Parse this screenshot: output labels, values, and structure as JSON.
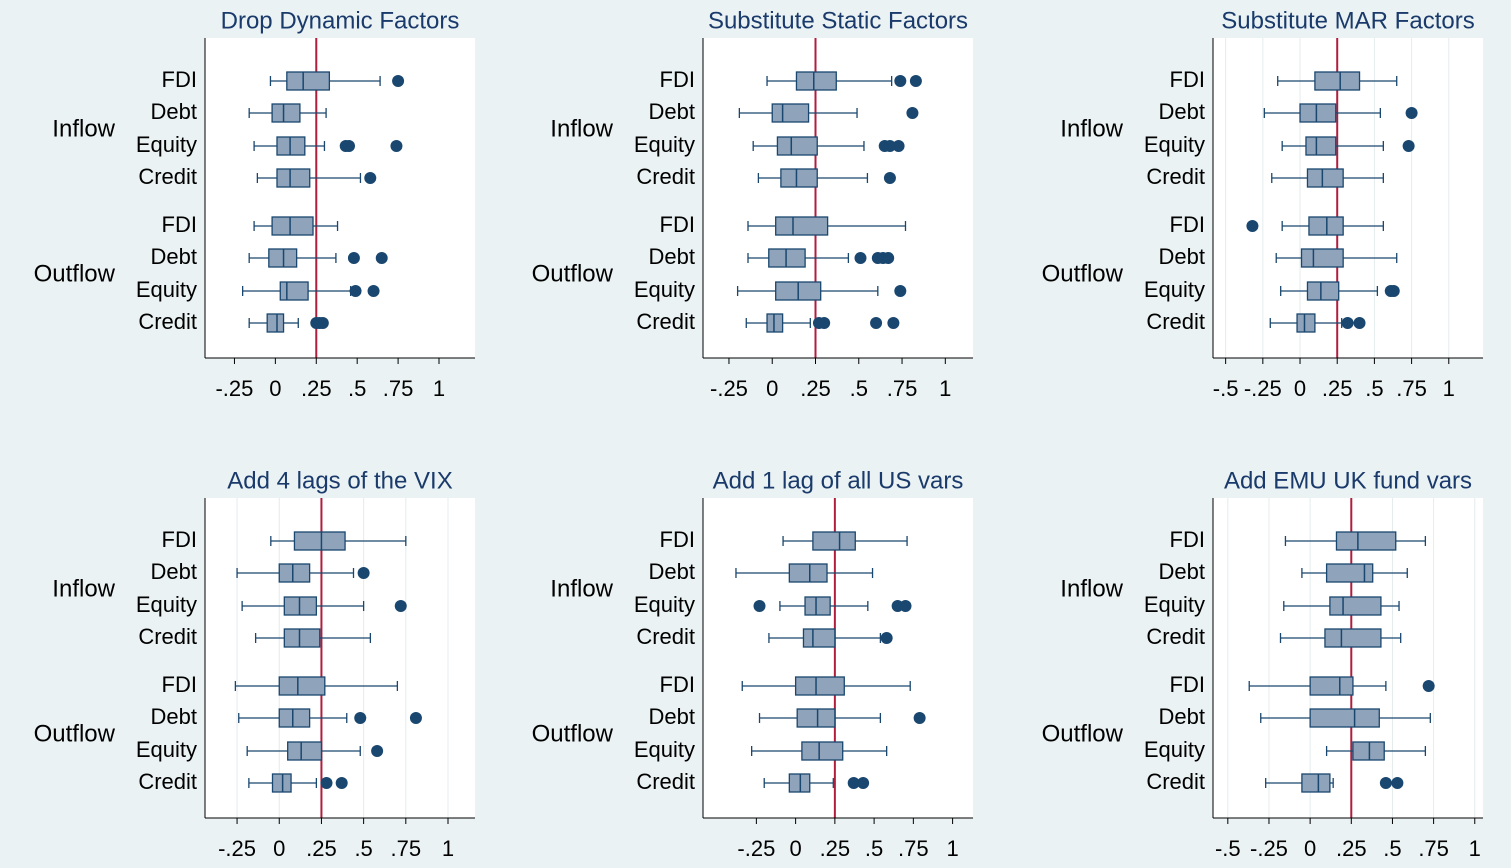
{
  "chart_data": [
    {
      "type": "box",
      "title": "Drop Dynamic Factors",
      "xlim": [
        -0.43,
        1.22
      ],
      "xticks": [
        {
          "value": -0.25,
          "label": "-.25"
        },
        0,
        {
          "value": 0.25,
          "label": ".25"
        },
        {
          "value": 0.5,
          "label": ".5"
        },
        {
          "value": 0.75,
          "label": ".75"
        },
        1
      ],
      "ref_line": 0.25,
      "grid": false,
      "color": "#8fa3ba",
      "ref_color": "#b01e3c",
      "groups": [
        {
          "name": "Inflow",
          "categories": [
            "FDI",
            "Debt",
            "Equity",
            "Credit"
          ],
          "boxes": [
            {
              "min": -0.03,
              "q1": 0.07,
              "median": 0.17,
              "q3": 0.33,
              "max": 0.64,
              "outliers": [
                0.75
              ]
            },
            {
              "min": -0.16,
              "q1": -0.02,
              "median": 0.05,
              "q3": 0.15,
              "max": 0.31,
              "outliers": []
            },
            {
              "min": -0.13,
              "q1": 0.01,
              "median": 0.09,
              "q3": 0.18,
              "max": 0.3,
              "outliers": [
                0.43,
                0.45,
                0.74
              ]
            },
            {
              "min": -0.11,
              "q1": 0.01,
              "median": 0.09,
              "q3": 0.21,
              "max": 0.52,
              "outliers": [
                0.58
              ]
            }
          ]
        },
        {
          "name": "Outflow",
          "categories": [
            "FDI",
            "Debt",
            "Equity",
            "Credit"
          ],
          "boxes": [
            {
              "min": -0.13,
              "q1": -0.02,
              "median": 0.09,
              "q3": 0.23,
              "max": 0.38,
              "outliers": []
            },
            {
              "min": -0.16,
              "q1": -0.04,
              "median": 0.05,
              "q3": 0.13,
              "max": 0.37,
              "outliers": [
                0.48,
                0.65
              ]
            },
            {
              "min": -0.2,
              "q1": 0.03,
              "median": 0.07,
              "q3": 0.2,
              "max": 0.46,
              "outliers": [
                0.49,
                0.6
              ]
            },
            {
              "min": -0.16,
              "q1": -0.05,
              "median": 0.01,
              "q3": 0.05,
              "max": 0.14,
              "outliers": [
                0.25,
                0.27,
                0.29
              ]
            }
          ]
        }
      ]
    },
    {
      "type": "box",
      "title": "Substitute Static Factors",
      "xlim": [
        -0.4,
        1.16
      ],
      "xticks": [
        {
          "value": -0.25,
          "label": "-.25"
        },
        0,
        {
          "value": 0.25,
          "label": ".25"
        },
        {
          "value": 0.5,
          "label": ".5"
        },
        {
          "value": 0.75,
          "label": ".75"
        },
        1
      ],
      "ref_line": 0.25,
      "grid": false,
      "color": "#8fa3ba",
      "ref_color": "#b01e3c",
      "groups": [
        {
          "name": "Inflow",
          "categories": [
            "FDI",
            "Debt",
            "Equity",
            "Credit"
          ],
          "boxes": [
            {
              "min": -0.03,
              "q1": 0.14,
              "median": 0.24,
              "q3": 0.37,
              "max": 0.69,
              "outliers": [
                0.74,
                0.83
              ]
            },
            {
              "min": -0.19,
              "q1": 0,
              "median": 0.06,
              "q3": 0.21,
              "max": 0.49,
              "outliers": [
                0.81
              ]
            },
            {
              "min": -0.11,
              "q1": 0.03,
              "median": 0.11,
              "q3": 0.26,
              "max": 0.53,
              "outliers": [
                0.65,
                0.68,
                0.73
              ]
            },
            {
              "min": -0.08,
              "q1": 0.05,
              "median": 0.14,
              "q3": 0.26,
              "max": 0.55,
              "outliers": [
                0.68
              ]
            }
          ]
        },
        {
          "name": "Outflow",
          "categories": [
            "FDI",
            "Debt",
            "Equity",
            "Credit"
          ],
          "boxes": [
            {
              "min": -0.14,
              "q1": 0.02,
              "median": 0.12,
              "q3": 0.32,
              "max": 0.77,
              "outliers": []
            },
            {
              "min": -0.14,
              "q1": -0.02,
              "median": 0.08,
              "q3": 0.19,
              "max": 0.44,
              "outliers": [
                0.51,
                0.61,
                0.64,
                0.67
              ]
            },
            {
              "min": -0.2,
              "q1": 0.02,
              "median": 0.15,
              "q3": 0.28,
              "max": 0.61,
              "outliers": [
                0.74
              ]
            },
            {
              "min": -0.15,
              "q1": -0.03,
              "median": 0.01,
              "q3": 0.06,
              "max": 0.22,
              "outliers": [
                0.27,
                0.3,
                0.6,
                0.7
              ]
            }
          ]
        }
      ]
    },
    {
      "type": "box",
      "title": "Substitute MAR Factors",
      "xlim": [
        -0.585,
        1.23
      ],
      "xticks": [
        {
          "value": -0.5,
          "label": "-.5"
        },
        {
          "value": -0.25,
          "label": "-.25"
        },
        0,
        {
          "value": 0.25,
          "label": ".25"
        },
        {
          "value": 0.5,
          "label": ".5"
        },
        {
          "value": 0.75,
          "label": ".75"
        },
        1
      ],
      "ref_line": 0.25,
      "grid": true,
      "color": "#8fa3ba",
      "ref_color": "#b01e3c",
      "groups": [
        {
          "name": "Inflow",
          "categories": [
            "FDI",
            "Debt",
            "Equity",
            "Credit"
          ],
          "boxes": [
            {
              "min": -0.15,
              "q1": 0.1,
              "median": 0.27,
              "q3": 0.4,
              "max": 0.65,
              "outliers": []
            },
            {
              "min": -0.24,
              "q1": 0,
              "median": 0.11,
              "q3": 0.24,
              "max": 0.54,
              "outliers": [
                0.75
              ]
            },
            {
              "min": -0.12,
              "q1": 0.04,
              "median": 0.11,
              "q3": 0.24,
              "max": 0.56,
              "outliers": [
                0.73
              ]
            },
            {
              "min": -0.19,
              "q1": 0.05,
              "median": 0.15,
              "q3": 0.29,
              "max": 0.56,
              "outliers": []
            }
          ]
        },
        {
          "name": "Outflow",
          "categories": [
            "FDI",
            "Debt",
            "Equity",
            "Credit"
          ],
          "boxes": [
            {
              "min": -0.12,
              "q1": 0.06,
              "median": 0.18,
              "q3": 0.29,
              "max": 0.56,
              "outliers": [
                -0.32
              ]
            },
            {
              "min": -0.16,
              "q1": 0.01,
              "median": 0.09,
              "q3": 0.29,
              "max": 0.65,
              "outliers": []
            },
            {
              "min": -0.13,
              "q1": 0.05,
              "median": 0.14,
              "q3": 0.26,
              "max": 0.52,
              "outliers": [
                0.61,
                0.63
              ]
            },
            {
              "min": -0.2,
              "q1": -0.02,
              "median": 0.03,
              "q3": 0.1,
              "max": 0.28,
              "outliers": [
                0.32,
                0.4
              ]
            }
          ]
        }
      ]
    },
    {
      "type": "box",
      "title": "Add 4 lags of the VIX",
      "xlim": [
        -0.44,
        1.16
      ],
      "xticks": [
        {
          "value": -0.25,
          "label": "-.25"
        },
        0,
        {
          "value": 0.25,
          "label": ".25"
        },
        {
          "value": 0.5,
          "label": ".5"
        },
        {
          "value": 0.75,
          "label": ".75"
        },
        1
      ],
      "ref_line": 0.25,
      "grid": true,
      "color": "#8fa3ba",
      "ref_color": "#b01e3c",
      "groups": [
        {
          "name": "Inflow",
          "categories": [
            "FDI",
            "Debt",
            "Equity",
            "Credit"
          ],
          "boxes": [
            {
              "min": -0.05,
              "q1": 0.09,
              "median": 0.25,
              "q3": 0.39,
              "max": 0.75,
              "outliers": []
            },
            {
              "min": -0.25,
              "q1": 0,
              "median": 0.08,
              "q3": 0.18,
              "max": 0.44,
              "outliers": [
                0.5
              ]
            },
            {
              "min": -0.22,
              "q1": 0.03,
              "median": 0.12,
              "q3": 0.22,
              "max": 0.5,
              "outliers": [
                0.72
              ]
            },
            {
              "min": -0.14,
              "q1": 0.03,
              "median": 0.12,
              "q3": 0.24,
              "max": 0.54,
              "outliers": []
            }
          ]
        },
        {
          "name": "Outflow",
          "categories": [
            "FDI",
            "Debt",
            "Equity",
            "Credit"
          ],
          "boxes": [
            {
              "min": -0.26,
              "q1": 0,
              "median": 0.11,
              "q3": 0.27,
              "max": 0.7,
              "outliers": []
            },
            {
              "min": -0.24,
              "q1": 0,
              "median": 0.08,
              "q3": 0.18,
              "max": 0.4,
              "outliers": [
                0.48,
                0.81
              ]
            },
            {
              "min": -0.19,
              "q1": 0.05,
              "median": 0.13,
              "q3": 0.25,
              "max": 0.48,
              "outliers": [
                0.58
              ]
            },
            {
              "min": -0.18,
              "q1": -0.04,
              "median": 0.02,
              "q3": 0.07,
              "max": 0.22,
              "outliers": [
                0.28,
                0.37
              ]
            }
          ]
        }
      ]
    },
    {
      "type": "box",
      "title": "Add 1 lag of all US vars",
      "xlim": [
        -0.59,
        1.13
      ],
      "xticks": [
        {
          "value": -0.25,
          "label": "-.25"
        },
        0,
        {
          "value": 0.25,
          "label": ".25"
        },
        {
          "value": 0.5,
          "label": ".5"
        },
        {
          "value": 0.75,
          "label": ".75"
        },
        1
      ],
      "ref_line": 0.25,
      "grid": false,
      "color": "#8fa3ba",
      "ref_color": "#b01e3c",
      "groups": [
        {
          "name": "Inflow",
          "categories": [
            "FDI",
            "Debt",
            "Equity",
            "Credit"
          ],
          "boxes": [
            {
              "min": -0.08,
              "q1": 0.11,
              "median": 0.28,
              "q3": 0.38,
              "max": 0.71,
              "outliers": []
            },
            {
              "min": -0.38,
              "q1": -0.04,
              "median": 0.09,
              "q3": 0.2,
              "max": 0.49,
              "outliers": []
            },
            {
              "min": -0.1,
              "q1": 0.06,
              "median": 0.13,
              "q3": 0.22,
              "max": 0.46,
              "outliers": [
                -0.23,
                0.65,
                0.7
              ]
            },
            {
              "min": -0.17,
              "q1": 0.05,
              "median": 0.11,
              "q3": 0.25,
              "max": 0.54,
              "outliers": [
                0.58
              ]
            }
          ]
        },
        {
          "name": "Outflow",
          "categories": [
            "FDI",
            "Debt",
            "Equity",
            "Credit"
          ],
          "boxes": [
            {
              "min": -0.34,
              "q1": 0,
              "median": 0.13,
              "q3": 0.31,
              "max": 0.73,
              "outliers": []
            },
            {
              "min": -0.23,
              "q1": 0.01,
              "median": 0.14,
              "q3": 0.25,
              "max": 0.54,
              "outliers": [
                0.79
              ]
            },
            {
              "min": -0.28,
              "q1": 0.04,
              "median": 0.15,
              "q3": 0.3,
              "max": 0.58,
              "outliers": []
            },
            {
              "min": -0.2,
              "q1": -0.04,
              "median": 0.03,
              "q3": 0.09,
              "max": 0.24,
              "outliers": [
                0.37,
                0.43
              ]
            }
          ]
        }
      ]
    },
    {
      "type": "box",
      "title": "Add EMU UK fund vars",
      "xlim": [
        -0.59,
        1.05
      ],
      "xticks": [
        {
          "value": -0.5,
          "label": "-.5"
        },
        {
          "value": -0.25,
          "label": "-.25"
        },
        0,
        {
          "value": 0.25,
          "label": ".25"
        },
        {
          "value": 0.5,
          "label": ".5"
        },
        {
          "value": 0.75,
          "label": ".75"
        },
        1
      ],
      "ref_line": 0.25,
      "grid": true,
      "color": "#8fa3ba",
      "ref_color": "#b01e3c",
      "groups": [
        {
          "name": "Inflow",
          "categories": [
            "FDI",
            "Debt",
            "Equity",
            "Credit"
          ],
          "boxes": [
            {
              "min": -0.15,
              "q1": 0.16,
              "median": 0.29,
              "q3": 0.52,
              "max": 0.7,
              "outliers": []
            },
            {
              "min": -0.05,
              "q1": 0.1,
              "median": 0.33,
              "q3": 0.38,
              "max": 0.59,
              "outliers": []
            },
            {
              "min": -0.16,
              "q1": 0.12,
              "median": 0.2,
              "q3": 0.43,
              "max": 0.54,
              "outliers": []
            },
            {
              "min": -0.18,
              "q1": 0.09,
              "median": 0.19,
              "q3": 0.43,
              "max": 0.55,
              "outliers": []
            }
          ]
        },
        {
          "name": "Outflow",
          "categories": [
            "FDI",
            "Debt",
            "Equity",
            "Credit"
          ],
          "boxes": [
            {
              "min": -0.37,
              "q1": 0,
              "median": 0.18,
              "q3": 0.26,
              "max": 0.46,
              "outliers": [
                0.72
              ]
            },
            {
              "min": -0.3,
              "q1": 0,
              "median": 0.27,
              "q3": 0.42,
              "max": 0.73,
              "outliers": []
            },
            {
              "min": 0.1,
              "q1": 0.26,
              "median": 0.36,
              "q3": 0.45,
              "max": 0.7,
              "outliers": []
            },
            {
              "min": -0.27,
              "q1": -0.05,
              "median": 0.05,
              "q3": 0.12,
              "max": 0.14,
              "outliers": [
                0.46,
                0.53
              ]
            }
          ]
        }
      ]
    }
  ]
}
